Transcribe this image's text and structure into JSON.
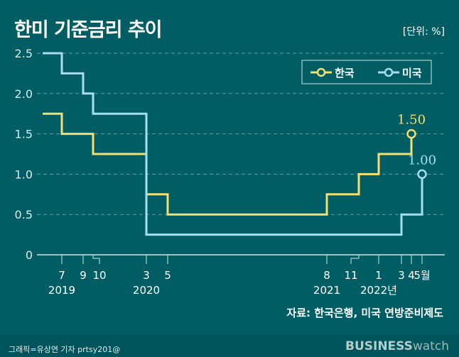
{
  "chart_data": {
    "type": "line",
    "step": true,
    "title": "한미 기준금리 추이",
    "unit": "[단위: %]",
    "ylim": [
      0,
      2.5
    ],
    "y_ticks": [
      "0",
      "0.5",
      "1.0",
      "1.5",
      "2.0",
      "2.5"
    ],
    "grid": true,
    "legend_position": "top-right",
    "x_ticks": [
      {
        "date": "2019-07",
        "label": "7",
        "year": "2019"
      },
      {
        "date": "2019-09",
        "label": "9"
      },
      {
        "date": "2019-10",
        "label": "10"
      },
      {
        "date": "2020-03",
        "label": "3",
        "year": "2020"
      },
      {
        "date": "2020-05",
        "label": "5"
      },
      {
        "date": "2021-08",
        "label": "8",
        "year": "2021"
      },
      {
        "date": "2021-11",
        "label": "11"
      },
      {
        "date": "2022-01",
        "label": "1",
        "year": "2022년"
      },
      {
        "date": "2022-03",
        "label": "3"
      },
      {
        "date": "2022-04",
        "label": "4"
      },
      {
        "date": "2022-05",
        "label": "5월"
      }
    ],
    "series": [
      {
        "name": "한국",
        "color": "#f3df72",
        "end_label": "1.50",
        "points": [
          {
            "date": "start",
            "value": 1.75
          },
          {
            "date": "2019-07",
            "value": 1.5
          },
          {
            "date": "2019-10",
            "value": 1.25
          },
          {
            "date": "2020-03",
            "value": 0.75
          },
          {
            "date": "2020-05",
            "value": 0.5
          },
          {
            "date": "2021-08",
            "value": 0.75
          },
          {
            "date": "2021-11",
            "value": 1.0
          },
          {
            "date": "2022-01",
            "value": 1.25
          },
          {
            "date": "2022-04",
            "value": 1.5
          }
        ]
      },
      {
        "name": "미국",
        "color": "#a6def0",
        "end_label": "1.00",
        "points": [
          {
            "date": "start",
            "value": 2.5
          },
          {
            "date": "2019-07",
            "value": 2.25
          },
          {
            "date": "2019-09",
            "value": 2.0
          },
          {
            "date": "2019-10",
            "value": 1.75
          },
          {
            "date": "2020-03",
            "value": 0.25
          },
          {
            "date": "2022-03",
            "value": 0.5
          },
          {
            "date": "2022-05",
            "value": 1.0
          }
        ]
      }
    ],
    "source": "자료: 한국은행, 미국 연방준비제도"
  },
  "footer": {
    "credit": "그래픽=유상연 기자 prtsy201@",
    "logo_bold": "BUSINESS",
    "logo_light": "watch"
  }
}
